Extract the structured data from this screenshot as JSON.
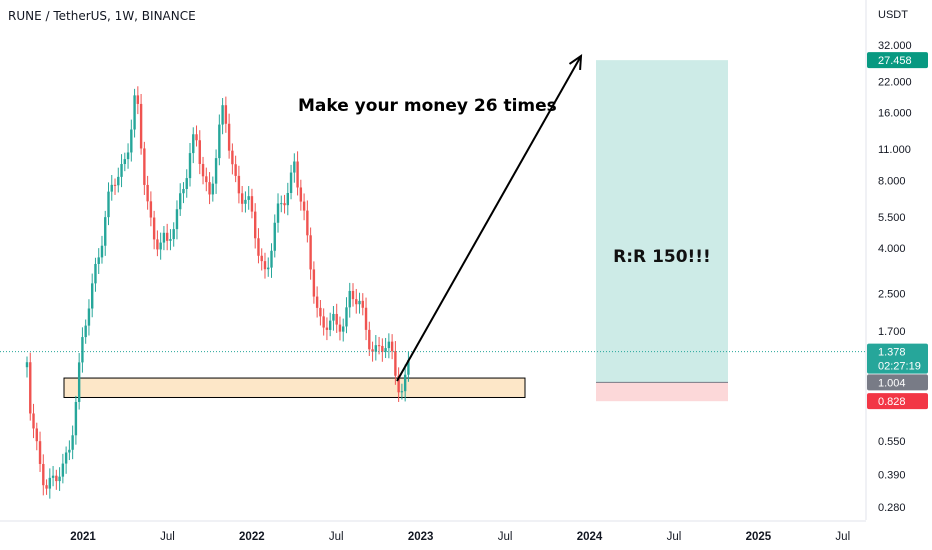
{
  "header": {
    "title": "RUNE / TetherUS, 1W, BINANCE"
  },
  "price_axis": {
    "currency": "USDT",
    "ticks": [
      32.0,
      22.0,
      16.0,
      11.0,
      8.0,
      5.5,
      4.0,
      2.5,
      1.7,
      0.55,
      0.39,
      0.28
    ],
    "tick_labels": [
      "32.000",
      "22.000",
      "16.000",
      "11.000",
      "8.000",
      "5.500",
      "4.000",
      "2.500",
      "1.700",
      "0.550",
      "0.390",
      "0.280"
    ]
  },
  "badges": {
    "target": {
      "label": "27.458",
      "value": 27.458,
      "color": "#089981"
    },
    "last": {
      "label": "1.378",
      "value": 1.378,
      "color": "#26a69a"
    },
    "countdown": {
      "label": "02:27:19",
      "color": "#26a69a"
    },
    "entry": {
      "label": "1.004",
      "value": 1.004,
      "color": "#787b86"
    },
    "stop": {
      "label": "0.828",
      "value": 0.828,
      "color": "#f23645"
    }
  },
  "time_axis": {
    "labels": [
      "2021",
      "Jul",
      "2022",
      "Jul",
      "2023",
      "Jul",
      "2024",
      "Jul",
      "2025",
      "Jul"
    ],
    "bold": [
      true,
      false,
      true,
      false,
      true,
      false,
      true,
      false,
      true,
      false
    ]
  },
  "annotations": {
    "headline": "Make your money 26 times",
    "rr": "R:R 150!!!"
  },
  "zones": {
    "support": {
      "top": 1.05,
      "bottom": 0.86,
      "color": "#fde7c8"
    },
    "profit": {
      "top": 27.458,
      "bottom": 1.004,
      "color": "#cdebe7"
    },
    "loss": {
      "top": 1.004,
      "bottom": 0.828,
      "color": "#fcd8d9"
    }
  },
  "colors": {
    "up": "#26a69a",
    "down": "#ef5350",
    "last_price_line": "#26a69a"
  },
  "chart_data": {
    "type": "candlestick",
    "symbol": "RUNE/USDT",
    "timeframe": "1W",
    "exchange": "BINANCE",
    "y_scale": "log",
    "ylim": [
      0.26,
      40
    ],
    "x_range": [
      "2020-09",
      "2025-08"
    ],
    "keypoints": [
      {
        "date": "2020-09",
        "price": 1.8
      },
      {
        "date": "2020-09",
        "price": 0.7
      },
      {
        "date": "2020-10",
        "price": 0.45
      },
      {
        "date": "2020-11",
        "price": 0.31
      },
      {
        "date": "2020-12",
        "price": 0.55
      },
      {
        "date": "2021-01",
        "price": 1.1
      },
      {
        "date": "2021-01",
        "price": 1.8
      },
      {
        "date": "2021-02",
        "price": 4.0
      },
      {
        "date": "2021-03",
        "price": 6.5
      },
      {
        "date": "2021-04",
        "price": 11.0
      },
      {
        "date": "2021-05",
        "price": 18.0
      },
      {
        "date": "2021-05",
        "price": 8.5
      },
      {
        "date": "2021-06",
        "price": 5.0
      },
      {
        "date": "2021-07",
        "price": 3.6
      },
      {
        "date": "2021-08",
        "price": 8.0
      },
      {
        "date": "2021-09",
        "price": 11.0
      },
      {
        "date": "2021-10",
        "price": 7.5
      },
      {
        "date": "2021-11",
        "price": 15.0
      },
      {
        "date": "2021-12",
        "price": 8.0
      },
      {
        "date": "2022-01",
        "price": 5.0
      },
      {
        "date": "2022-02",
        "price": 3.3
      },
      {
        "date": "2022-03",
        "price": 5.5
      },
      {
        "date": "2022-04",
        "price": 10.5
      },
      {
        "date": "2022-05",
        "price": 3.6
      },
      {
        "date": "2022-06",
        "price": 1.9
      },
      {
        "date": "2022-07",
        "price": 1.6
      },
      {
        "date": "2022-08",
        "price": 2.7
      },
      {
        "date": "2022-09",
        "price": 1.7
      },
      {
        "date": "2022-10",
        "price": 1.5
      },
      {
        "date": "2022-11",
        "price": 1.2
      },
      {
        "date": "2022-12",
        "price": 1.0
      },
      {
        "date": "2022-12",
        "price": 1.378
      }
    ],
    "last_price": 1.378,
    "position": {
      "entry": 1.004,
      "target": 27.458,
      "stop": 0.828
    },
    "projection": {
      "from": {
        "date": "2022-12",
        "price": 1.0
      },
      "to": {
        "date": "2023-12",
        "price": 27.458
      }
    }
  }
}
